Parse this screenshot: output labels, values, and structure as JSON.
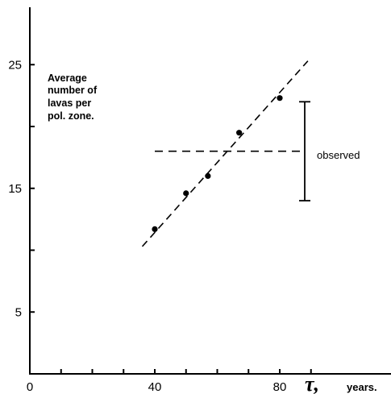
{
  "chart_data": {
    "type": "scatter",
    "ylabel_lines": [
      "Average",
      "number of",
      "lavas per",
      "pol. zone."
    ],
    "xlabel_symbol": "τ,",
    "xlabel_unit": "years.",
    "xlim": [
      0,
      95
    ],
    "ylim": [
      0,
      30
    ],
    "x_ticks": [
      0,
      10,
      20,
      30,
      40,
      50,
      60,
      70,
      80,
      90
    ],
    "x_tick_labels": [
      {
        "value": 0,
        "label": "0"
      },
      {
        "value": 40,
        "label": "40"
      },
      {
        "value": 80,
        "label": "80"
      }
    ],
    "y_ticks": [
      0,
      5,
      10,
      15,
      20,
      25
    ],
    "y_tick_labels": [
      {
        "value": 5,
        "label": "5"
      },
      {
        "value": 15,
        "label": "15"
      },
      {
        "value": 25,
        "label": "25"
      }
    ],
    "points": [
      {
        "x": 40,
        "y": 11.7
      },
      {
        "x": 50,
        "y": 14.6
      },
      {
        "x": 57,
        "y": 16.0
      },
      {
        "x": 67,
        "y": 19.5
      },
      {
        "x": 80,
        "y": 22.3
      }
    ],
    "fit_line": {
      "x": [
        36,
        89
      ],
      "y": [
        10.3,
        25.3
      ]
    },
    "observed": {
      "label": "observed",
      "value": 18,
      "line_x": [
        40,
        88
      ],
      "error_bar": {
        "x": 88,
        "low": 14,
        "high": 22
      }
    }
  }
}
